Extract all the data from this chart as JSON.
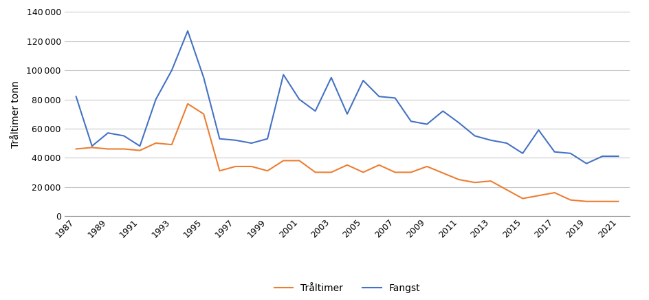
{
  "years": [
    1987,
    1988,
    1989,
    1990,
    1991,
    1992,
    1993,
    1994,
    1995,
    1996,
    1997,
    1998,
    1999,
    2000,
    2001,
    2002,
    2003,
    2004,
    2005,
    2006,
    2007,
    2008,
    2009,
    2010,
    2011,
    2012,
    2013,
    2014,
    2015,
    2016,
    2017,
    2018,
    2019,
    2020,
    2021
  ],
  "fangst": [
    82000,
    48000,
    57000,
    55000,
    48000,
    80000,
    100000,
    127000,
    95000,
    53000,
    52000,
    50000,
    53000,
    97000,
    80000,
    72000,
    95000,
    70000,
    93000,
    82000,
    81000,
    65000,
    63000,
    72000,
    64000,
    55000,
    52000,
    50000,
    43000,
    59000,
    44000,
    43000,
    36000,
    41000,
    41000
  ],
  "traltimer_years": [
    1987,
    1988,
    1989,
    1990,
    1991,
    1992,
    1993,
    1994,
    1995,
    1996,
    1997,
    1998,
    1999,
    2000,
    2001,
    2002,
    2003,
    2004,
    2005,
    2006,
    2007,
    2008,
    2009,
    2011,
    2012,
    2013,
    2015,
    2017,
    2018,
    2019,
    2021
  ],
  "traltimer_vals": [
    46000,
    47000,
    46000,
    46000,
    45000,
    50000,
    49000,
    77000,
    70000,
    31000,
    34000,
    34000,
    31000,
    38000,
    38000,
    30000,
    30000,
    35000,
    30000,
    35000,
    30000,
    30000,
    34000,
    25000,
    23000,
    24000,
    12000,
    16000,
    11000,
    10000,
    10000
  ],
  "traltimer_color": "#ED7D31",
  "fangst_color": "#4472C4",
  "ylabel": "Tråltimer tonn",
  "ylim": [
    0,
    140000
  ],
  "yticks": [
    0,
    20000,
    40000,
    60000,
    80000,
    100000,
    120000,
    140000
  ],
  "xtick_years": [
    1987,
    1989,
    1991,
    1993,
    1995,
    1997,
    1999,
    2001,
    2003,
    2005,
    2007,
    2009,
    2011,
    2013,
    2015,
    2017,
    2019,
    2021
  ],
  "legend_labels": [
    "Tråltimer",
    "Fangst"
  ],
  "background_color": "#ffffff",
  "grid_color": "#c8c8c8",
  "linewidth": 1.5
}
